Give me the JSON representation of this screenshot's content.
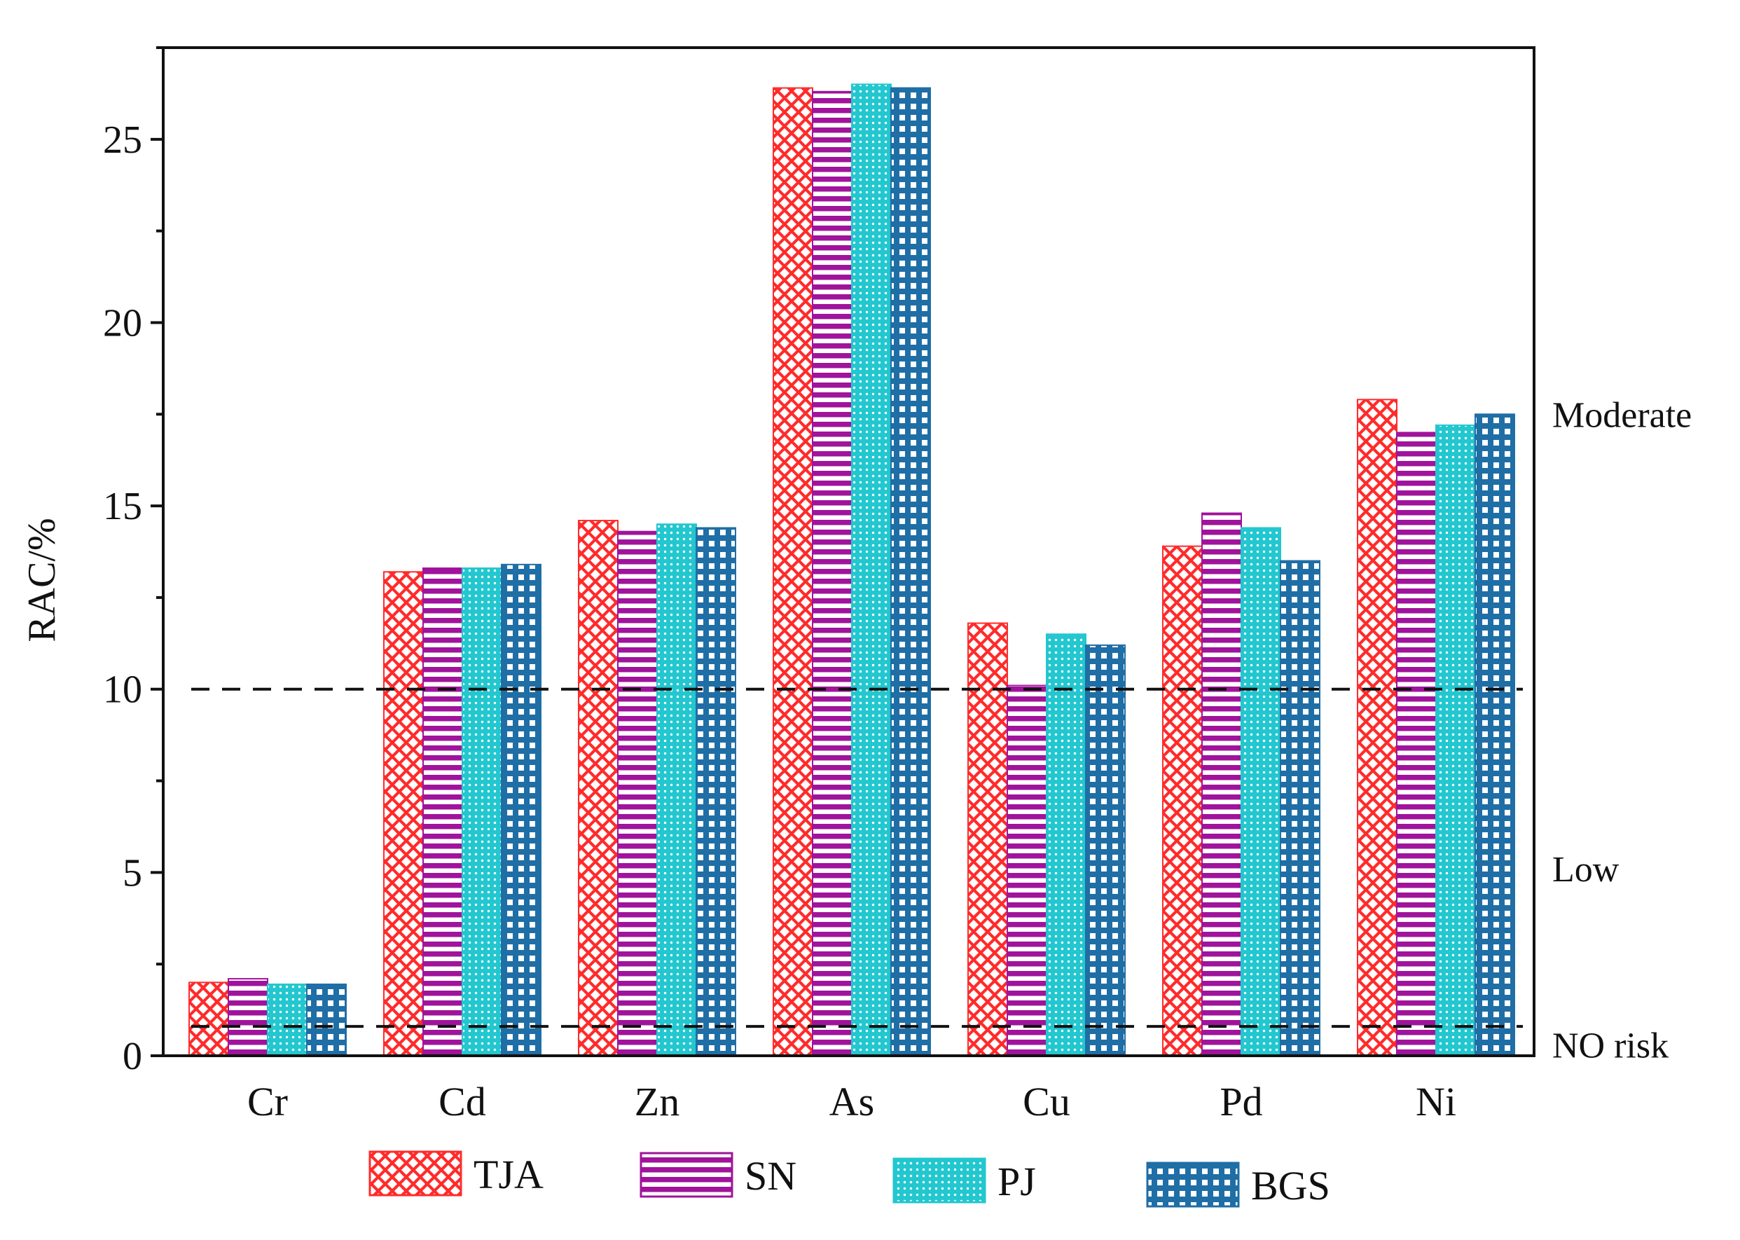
{
  "chart_data": {
    "type": "bar",
    "ylabel": "RAC/%",
    "xlabel": "",
    "ylim": [
      0,
      27.5
    ],
    "yticks": [
      0,
      5,
      10,
      15,
      20,
      25
    ],
    "categories": [
      "Cr",
      "Cd",
      "Zn",
      "As",
      "Cu",
      "Pd",
      "Ni"
    ],
    "series": [
      {
        "name": "TJA",
        "values": [
          2.0,
          13.2,
          14.6,
          26.4,
          11.8,
          13.9,
          17.9
        ]
      },
      {
        "name": "SN",
        "values": [
          2.1,
          13.3,
          14.3,
          26.3,
          10.1,
          14.8,
          17.0
        ]
      },
      {
        "name": "PJ",
        "values": [
          1.95,
          13.3,
          14.5,
          26.5,
          11.5,
          14.4,
          17.2
        ]
      },
      {
        "name": "BGS",
        "values": [
          1.95,
          13.4,
          14.4,
          26.4,
          11.2,
          13.5,
          17.5
        ]
      }
    ],
    "reference_lines": [
      {
        "y": 10,
        "style": "dashed"
      },
      {
        "y": 0.8,
        "style": "dashed"
      }
    ],
    "zone_labels": [
      {
        "label": "Moderate",
        "y": 17.5
      },
      {
        "label": "Low",
        "y": 5.1
      },
      {
        "label": "NO risk",
        "y": 0.3
      }
    ],
    "legend_position": "bottom",
    "grid": false
  },
  "colors": {
    "TJA": "#ff2b2b",
    "SN": "#a0139b",
    "PJ": "#22c7cf",
    "BGS": "#1f6ea6"
  }
}
